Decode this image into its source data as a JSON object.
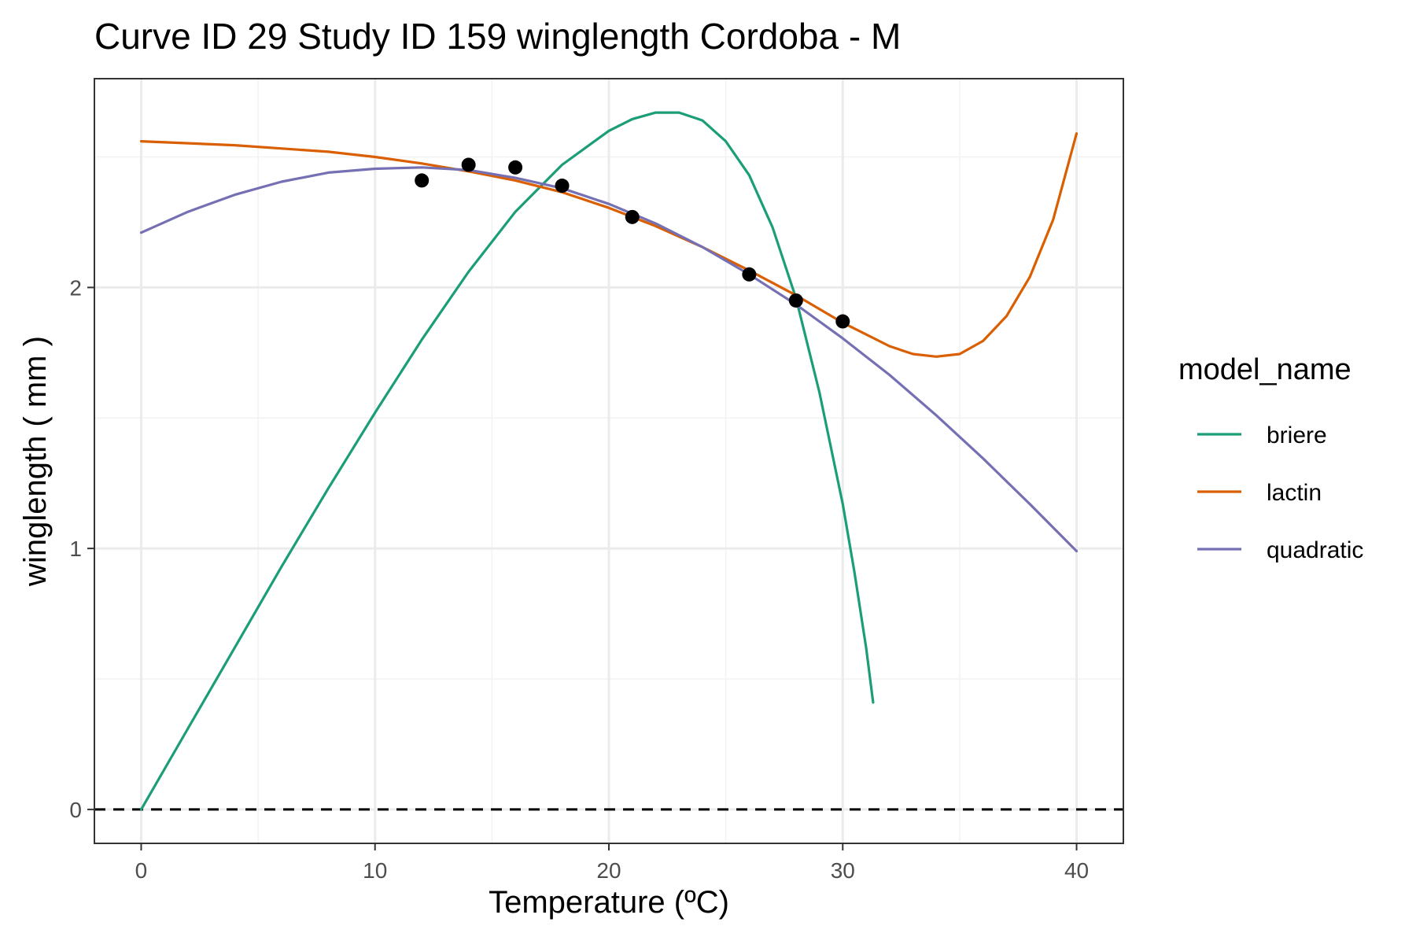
{
  "chart_data": {
    "type": "line",
    "title": "Curve ID 29 Study ID 159 winglength Cordoba - M",
    "xlabel": "Temperature (ºC)",
    "ylabel": "winglength ( mm )",
    "xlim": [
      -2,
      42
    ],
    "ylim": [
      -0.13,
      2.8
    ],
    "x_ticks": [
      0,
      10,
      20,
      30,
      40
    ],
    "y_ticks": [
      0,
      1,
      2
    ],
    "grid": true,
    "reference_line": {
      "y": 0,
      "style": "dashed"
    },
    "legend": {
      "title": "model_name",
      "position": "right"
    },
    "points": {
      "x": [
        12,
        14,
        16,
        18,
        21,
        26,
        28,
        30
      ],
      "y": [
        2.41,
        2.47,
        2.46,
        2.39,
        2.27,
        2.05,
        1.95,
        1.87
      ]
    },
    "series": [
      {
        "name": "briere",
        "color": "#1b9e77",
        "x": [
          0,
          2,
          4,
          6,
          8,
          10,
          12,
          14,
          16,
          18,
          20,
          21,
          22,
          23,
          24,
          25,
          26,
          27,
          28,
          29,
          30,
          30.5,
          31,
          31.3
        ],
        "y": [
          0.0,
          0.31,
          0.62,
          0.93,
          1.23,
          1.52,
          1.8,
          2.06,
          2.29,
          2.47,
          2.6,
          2.645,
          2.67,
          2.67,
          2.64,
          2.56,
          2.43,
          2.23,
          1.96,
          1.6,
          1.17,
          0.91,
          0.62,
          0.41
        ]
      },
      {
        "name": "lactin",
        "color": "#d95f02",
        "x": [
          0,
          4,
          8,
          10,
          12,
          14,
          16,
          18,
          20,
          22,
          24,
          26,
          28,
          30,
          32,
          33,
          34,
          35,
          36,
          37,
          38,
          39,
          40
        ],
        "y": [
          2.56,
          2.545,
          2.52,
          2.5,
          2.475,
          2.445,
          2.41,
          2.365,
          2.305,
          2.235,
          2.155,
          2.065,
          1.97,
          1.865,
          1.775,
          1.745,
          1.735,
          1.745,
          1.795,
          1.89,
          2.04,
          2.26,
          2.59
        ]
      },
      {
        "name": "quadratic",
        "color": "#7570b3",
        "x": [
          0,
          2,
          4,
          6,
          8,
          10,
          12,
          14,
          16,
          18,
          20,
          22,
          24,
          26,
          28,
          30,
          32,
          34,
          36,
          38,
          40
        ],
        "y": [
          2.21,
          2.29,
          2.355,
          2.405,
          2.44,
          2.455,
          2.46,
          2.45,
          2.42,
          2.38,
          2.32,
          2.245,
          2.155,
          2.05,
          1.935,
          1.805,
          1.665,
          1.51,
          1.345,
          1.17,
          0.99
        ]
      }
    ]
  }
}
